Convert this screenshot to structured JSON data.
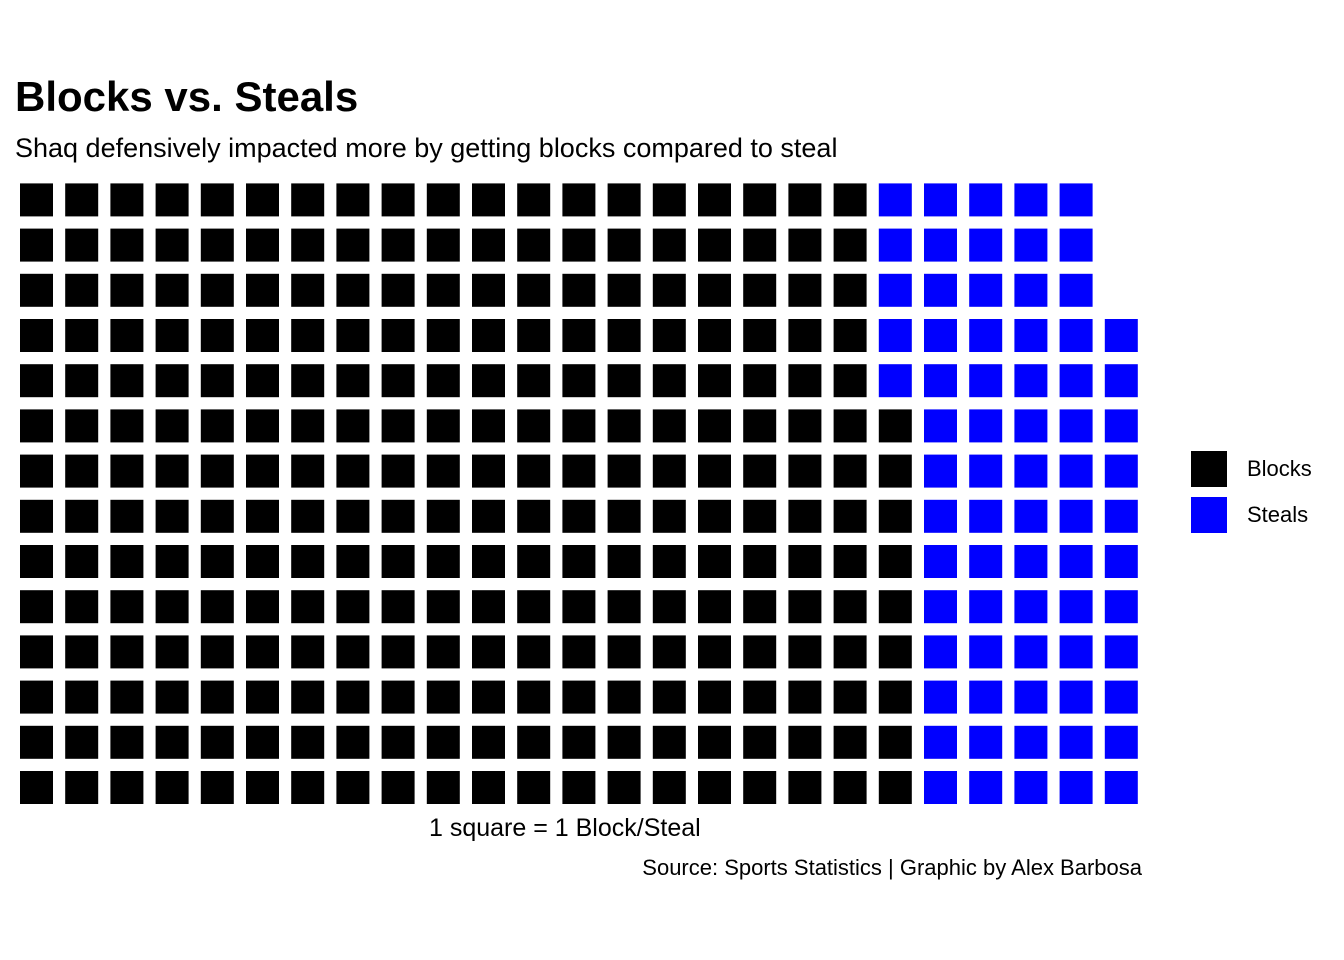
{
  "chart_data": {
    "type": "waffle",
    "title": "Blocks vs. Steals",
    "subtitle": "Shaq defensively impacted more by getting blocks compared to steal",
    "xlabel": "1 square = 1 Block/Steal",
    "caption": "Source: Sports Statistics | Graphic by Alex Barbosa",
    "rows": 14,
    "units_per_square": 1,
    "series": [
      {
        "name": "Blocks",
        "value": 275,
        "color": "#000000"
      },
      {
        "name": "Steals",
        "value": 72,
        "color": "#0000FF"
      }
    ],
    "legend": {
      "position": "right",
      "items": [
        {
          "label": "Blocks",
          "color": "#000000"
        },
        {
          "label": "Steals",
          "color": "#0000FF"
        }
      ]
    }
  }
}
